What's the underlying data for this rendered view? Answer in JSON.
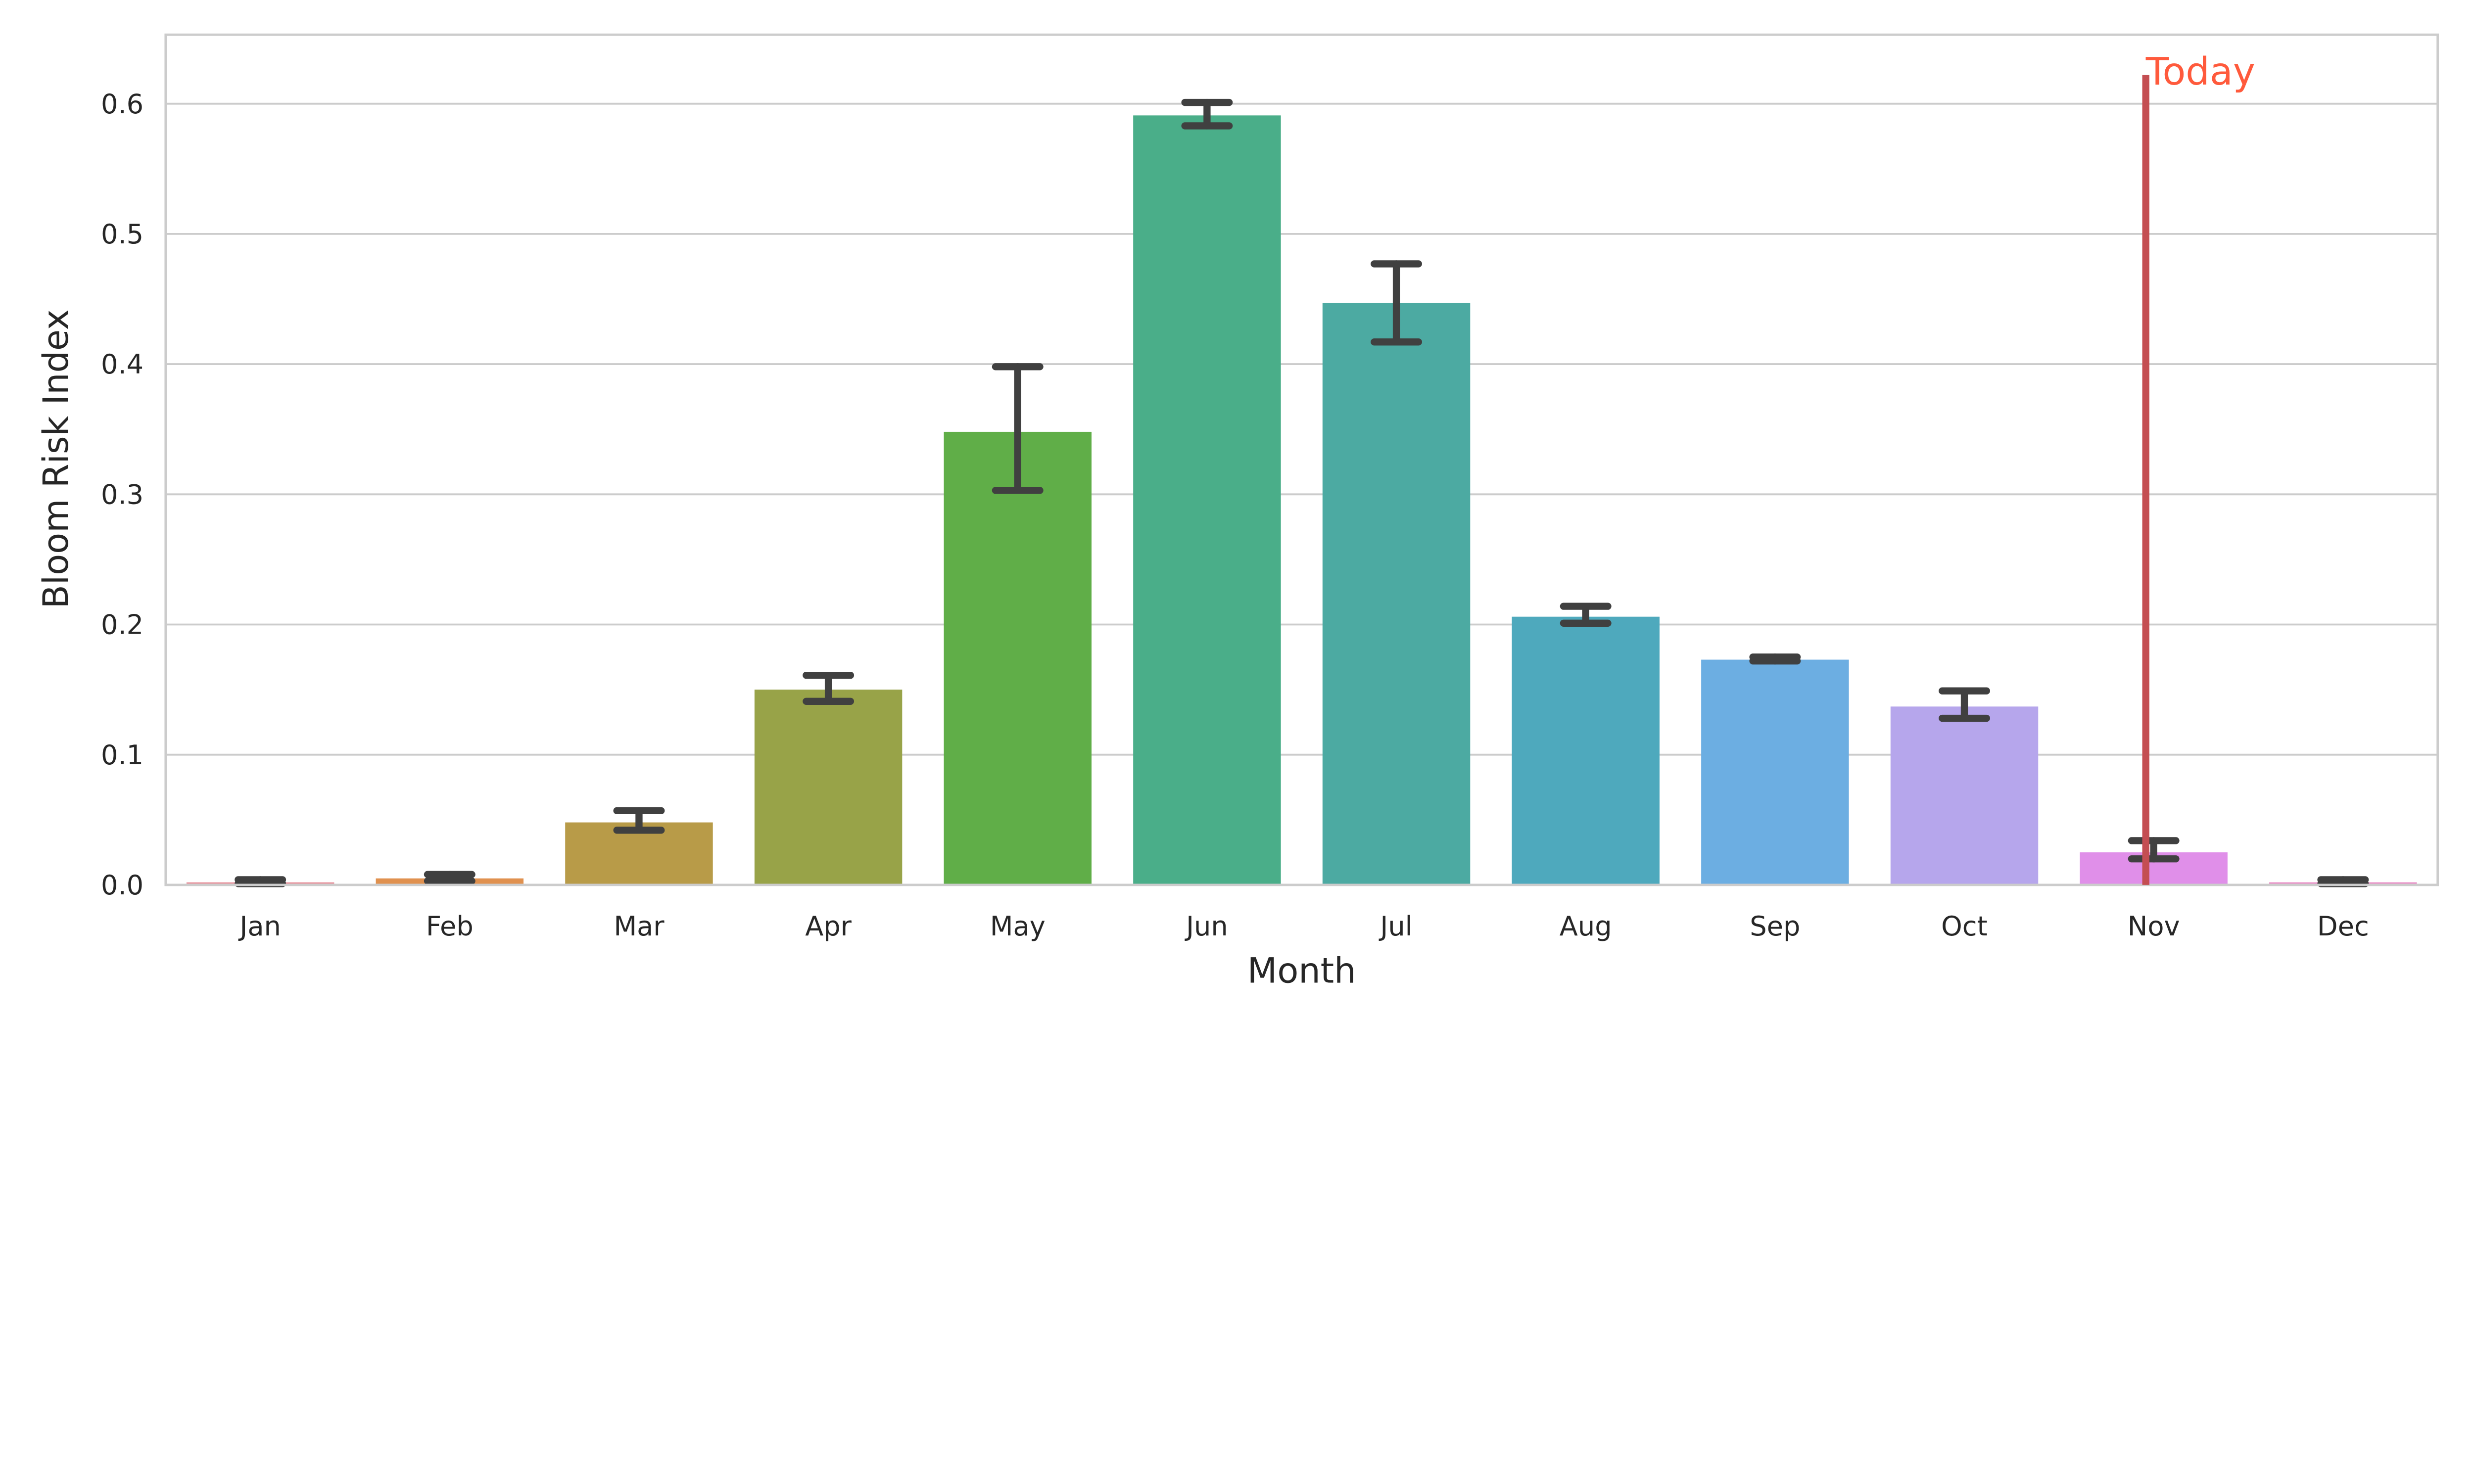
{
  "chart_data": {
    "type": "bar",
    "title": "",
    "xlabel": "Month",
    "ylabel": "Bloom Risk Index",
    "ylim": [
      0,
      0.653
    ],
    "yticks": [
      "0.0",
      "0.1",
      "0.2",
      "0.3",
      "0.4",
      "0.5",
      "0.6"
    ],
    "grid": "horizontal",
    "categories": [
      "Jan",
      "Feb",
      "Mar",
      "Apr",
      "May",
      "Jun",
      "Jul",
      "Aug",
      "Sep",
      "Oct",
      "Nov",
      "Dec"
    ],
    "values": [
      0.002,
      0.005,
      0.048,
      0.15,
      0.348,
      0.591,
      0.447,
      0.206,
      0.173,
      0.137,
      0.025,
      0.002
    ],
    "error_low": [
      0.001,
      0.003,
      0.042,
      0.141,
      0.303,
      0.583,
      0.417,
      0.201,
      0.172,
      0.128,
      0.02,
      0.001
    ],
    "error_high": [
      0.004,
      0.008,
      0.057,
      0.161,
      0.398,
      0.601,
      0.477,
      0.214,
      0.175,
      0.149,
      0.034,
      0.004
    ],
    "colors": [
      "#e8969f",
      "#e0914f",
      "#b89b48",
      "#98a348",
      "#60ae48",
      "#4aae89",
      "#4caaa2",
      "#4ea9bd",
      "#6caee2",
      "#b6a6ec",
      "#e08fe9",
      "#ea91c8"
    ],
    "annotation": {
      "label": "Today",
      "category": "Nov",
      "line_top": 0.622,
      "line_color": "#c44e52",
      "text_color": "#ff5a3c"
    }
  }
}
